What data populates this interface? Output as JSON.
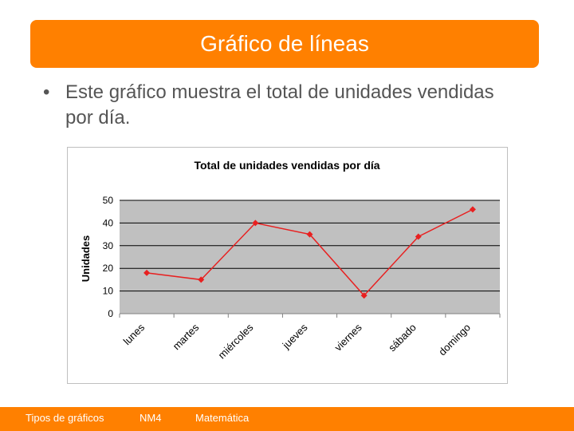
{
  "slide": {
    "title": "Gráfico de líneas",
    "bullet": "Este gráfico muestra el total de unidades vendidas por día."
  },
  "chart_data": {
    "type": "line",
    "title": "Total de unidades vendidas por día",
    "xlabel": "",
    "ylabel": "Unidades",
    "categories": [
      "lunes",
      "martes",
      "miércoles",
      "jueves",
      "viernes",
      "sábado",
      "domingo"
    ],
    "series": [
      {
        "values": [
          18,
          15,
          40,
          35,
          8,
          34,
          46
        ]
      }
    ],
    "ylim": [
      0,
      50
    ],
    "yticks": [
      0,
      10,
      20,
      30,
      40,
      50
    ],
    "grid": true,
    "legend": "none",
    "colors": {
      "line": "#e82020",
      "plot_bg": "#c0c0c0",
      "grid": "#000000"
    }
  },
  "footer": {
    "topic": "Tipos de gráficos",
    "level": "NM4",
    "subject": "Matemática"
  },
  "colors": {
    "accent": "#ff8000",
    "text": "#555555"
  }
}
